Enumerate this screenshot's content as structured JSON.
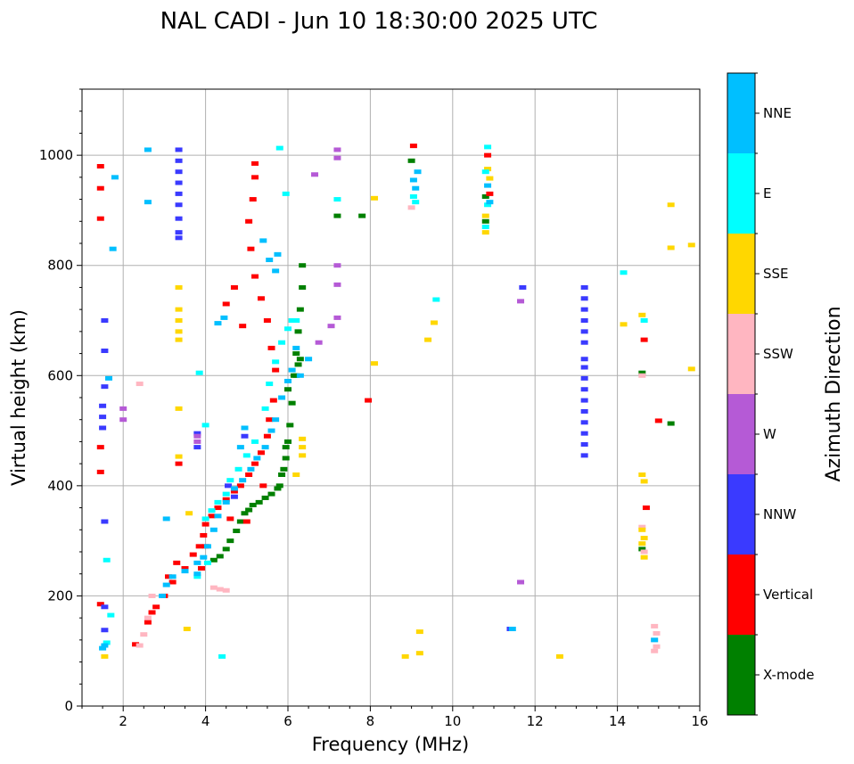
{
  "chart_data": {
    "type": "scatter",
    "title": "NAL CADI - Jun 10 18:30:00 2025 UTC",
    "xlabel": "Frequency (MHz)",
    "ylabel": "Virtual height (km)",
    "xlim": [
      1,
      16
    ],
    "ylim": [
      0,
      1120
    ],
    "x_ticks": [
      2,
      4,
      6,
      8,
      10,
      12,
      14,
      16
    ],
    "x_tick_labels": [
      "2",
      "4",
      "6",
      "8",
      "10",
      "12",
      "14",
      "16"
    ],
    "y_ticks": [
      0,
      200,
      400,
      600,
      800,
      1000
    ],
    "y_tick_labels": [
      "0",
      "200",
      "400",
      "600",
      "800",
      "1000"
    ],
    "grid": true,
    "colorbar": {
      "title": "Azimuth Direction",
      "categories": [
        {
          "name": "X-mode",
          "color": "#008000"
        },
        {
          "name": "Vertical",
          "color": "#ff0000"
        },
        {
          "name": "NNW",
          "color": "#3a3aff"
        },
        {
          "name": "W",
          "color": "#b55ad6"
        },
        {
          "name": "SSW",
          "color": "#ffb6c1"
        },
        {
          "name": "SSE",
          "color": "#ffd700"
        },
        {
          "name": "E",
          "color": "#00ffff"
        },
        {
          "name": "NNE",
          "color": "#00bfff"
        }
      ]
    },
    "series": [
      {
        "name": "X-mode",
        "points": [
          [
            4.2,
            265
          ],
          [
            4.35,
            272
          ],
          [
            4.5,
            285
          ],
          [
            4.6,
            300
          ],
          [
            4.75,
            318
          ],
          [
            4.85,
            335
          ],
          [
            4.95,
            350
          ],
          [
            5.05,
            356
          ],
          [
            5.15,
            365
          ],
          [
            5.3,
            370
          ],
          [
            5.45,
            378
          ],
          [
            5.6,
            385
          ],
          [
            5.75,
            395
          ],
          [
            5.85,
            420
          ],
          [
            5.95,
            450
          ],
          [
            6.0,
            480
          ],
          [
            6.05,
            510
          ],
          [
            6.1,
            550
          ],
          [
            6.15,
            600
          ],
          [
            6.2,
            640
          ],
          [
            6.25,
            680
          ],
          [
            6.3,
            720
          ],
          [
            6.35,
            760
          ],
          [
            6.35,
            800
          ],
          [
            5.9,
            430
          ],
          [
            5.95,
            470
          ],
          [
            6.2,
            600
          ],
          [
            6.25,
            620
          ],
          [
            6.3,
            630
          ],
          [
            6.0,
            575
          ],
          [
            5.8,
            400
          ],
          [
            14.6,
            605
          ],
          [
            14.6,
            285
          ],
          [
            15.3,
            513
          ],
          [
            9.0,
            990
          ],
          [
            10.8,
            925
          ],
          [
            10.8,
            880
          ],
          [
            7.8,
            890
          ],
          [
            7.2,
            890
          ]
        ]
      },
      {
        "name": "Vertical",
        "points": [
          [
            2.3,
            112
          ],
          [
            2.6,
            152
          ],
          [
            2.8,
            180
          ],
          [
            3.0,
            200
          ],
          [
            3.2,
            225
          ],
          [
            3.5,
            250
          ],
          [
            3.7,
            275
          ],
          [
            3.85,
            290
          ],
          [
            3.95,
            310
          ],
          [
            4.0,
            330
          ],
          [
            4.15,
            345
          ],
          [
            4.3,
            360
          ],
          [
            4.5,
            375
          ],
          [
            4.7,
            390
          ],
          [
            4.85,
            400
          ],
          [
            5.05,
            420
          ],
          [
            5.2,
            440
          ],
          [
            5.35,
            460
          ],
          [
            5.5,
            490
          ],
          [
            5.55,
            520
          ],
          [
            5.65,
            555
          ],
          [
            5.7,
            610
          ],
          [
            5.6,
            650
          ],
          [
            5.5,
            700
          ],
          [
            5.35,
            740
          ],
          [
            5.2,
            780
          ],
          [
            5.1,
            830
          ],
          [
            5.05,
            880
          ],
          [
            5.15,
            920
          ],
          [
            5.2,
            960
          ],
          [
            5.2,
            985
          ],
          [
            4.7,
            760
          ],
          [
            4.5,
            730
          ],
          [
            4.9,
            690
          ],
          [
            1.45,
            980
          ],
          [
            1.45,
            940
          ],
          [
            1.45,
            885
          ],
          [
            1.45,
            470
          ],
          [
            1.45,
            425
          ],
          [
            1.45,
            185
          ],
          [
            3.35,
            440
          ],
          [
            7.95,
            555
          ],
          [
            9.05,
            1017
          ],
          [
            10.85,
            1000
          ],
          [
            10.9,
            930
          ],
          [
            14.65,
            665
          ],
          [
            14.7,
            360
          ],
          [
            15.0,
            518
          ],
          [
            4.0,
            290
          ],
          [
            3.9,
            250
          ],
          [
            5.0,
            335
          ],
          [
            4.6,
            340
          ],
          [
            5.4,
            400
          ],
          [
            3.1,
            235
          ],
          [
            3.3,
            260
          ],
          [
            2.7,
            170
          ]
        ]
      },
      {
        "name": "NNW",
        "points": [
          [
            3.35,
            1010
          ],
          [
            3.35,
            990
          ],
          [
            3.35,
            970
          ],
          [
            3.35,
            950
          ],
          [
            3.35,
            930
          ],
          [
            3.35,
            910
          ],
          [
            3.35,
            885
          ],
          [
            3.35,
            860
          ],
          [
            3.35,
            850
          ],
          [
            13.2,
            760
          ],
          [
            13.2,
            740
          ],
          [
            13.2,
            720
          ],
          [
            13.2,
            700
          ],
          [
            13.2,
            680
          ],
          [
            13.2,
            660
          ],
          [
            13.2,
            630
          ],
          [
            13.2,
            615
          ],
          [
            13.2,
            595
          ],
          [
            13.2,
            575
          ],
          [
            13.2,
            555
          ],
          [
            13.2,
            535
          ],
          [
            13.2,
            515
          ],
          [
            13.2,
            495
          ],
          [
            13.2,
            475
          ],
          [
            13.2,
            455
          ],
          [
            1.55,
            700
          ],
          [
            1.55,
            645
          ],
          [
            1.55,
            580
          ],
          [
            1.5,
            545
          ],
          [
            1.5,
            525
          ],
          [
            1.5,
            505
          ],
          [
            1.55,
            180
          ],
          [
            1.55,
            138
          ],
          [
            1.55,
            335
          ],
          [
            4.55,
            400
          ],
          [
            4.7,
            380
          ],
          [
            3.8,
            495
          ],
          [
            3.8,
            470
          ],
          [
            11.7,
            760
          ],
          [
            11.4,
            140
          ],
          [
            4.95,
            490
          ]
        ]
      },
      {
        "name": "W",
        "points": [
          [
            7.2,
            1010
          ],
          [
            7.2,
            995
          ],
          [
            7.2,
            800
          ],
          [
            7.2,
            765
          ],
          [
            7.2,
            705
          ],
          [
            6.65,
            965
          ],
          [
            6.75,
            660
          ],
          [
            7.05,
            690
          ],
          [
            3.8,
            490
          ],
          [
            3.8,
            480
          ],
          [
            2.0,
            540
          ],
          [
            2.0,
            520
          ],
          [
            11.65,
            735
          ],
          [
            11.65,
            225
          ]
        ]
      },
      {
        "name": "SSW",
        "points": [
          [
            4.2,
            215
          ],
          [
            4.35,
            212
          ],
          [
            4.5,
            210
          ],
          [
            2.4,
            110
          ],
          [
            2.5,
            130
          ],
          [
            2.6,
            160
          ],
          [
            2.7,
            200
          ],
          [
            14.9,
            145
          ],
          [
            14.95,
            132
          ],
          [
            14.9,
            120
          ],
          [
            14.95,
            108
          ],
          [
            14.9,
            100
          ],
          [
            14.6,
            600
          ],
          [
            14.6,
            325
          ],
          [
            14.65,
            280
          ],
          [
            9.0,
            905
          ],
          [
            2.4,
            585
          ]
        ]
      },
      {
        "name": "SSE",
        "points": [
          [
            3.35,
            760
          ],
          [
            3.35,
            720
          ],
          [
            3.35,
            700
          ],
          [
            3.35,
            680
          ],
          [
            3.35,
            665
          ],
          [
            3.35,
            540
          ],
          [
            3.35,
            453
          ],
          [
            6.35,
            485
          ],
          [
            6.35,
            470
          ],
          [
            6.35,
            455
          ],
          [
            6.2,
            420
          ],
          [
            8.1,
            922
          ],
          [
            8.1,
            622
          ],
          [
            9.2,
            135
          ],
          [
            9.2,
            96
          ],
          [
            8.85,
            90
          ],
          [
            9.55,
            696
          ],
          [
            9.4,
            665
          ],
          [
            12.6,
            90
          ],
          [
            14.15,
            693
          ],
          [
            14.6,
            710
          ],
          [
            14.6,
            420
          ],
          [
            14.65,
            408
          ],
          [
            14.6,
            320
          ],
          [
            14.65,
            305
          ],
          [
            14.6,
            295
          ],
          [
            14.65,
            270
          ],
          [
            15.3,
            910
          ],
          [
            15.3,
            832
          ],
          [
            15.8,
            837
          ],
          [
            15.8,
            612
          ],
          [
            3.55,
            140
          ],
          [
            3.6,
            350
          ],
          [
            1.55,
            90
          ],
          [
            10.85,
            975
          ],
          [
            10.9,
            958
          ],
          [
            10.8,
            890
          ],
          [
            10.8,
            860
          ]
        ]
      },
      {
        "name": "E",
        "points": [
          [
            4.0,
            340
          ],
          [
            4.15,
            355
          ],
          [
            4.3,
            370
          ],
          [
            4.5,
            385
          ],
          [
            4.6,
            410
          ],
          [
            4.8,
            430
          ],
          [
            5.0,
            455
          ],
          [
            5.2,
            480
          ],
          [
            5.45,
            540
          ],
          [
            5.55,
            585
          ],
          [
            5.7,
            625
          ],
          [
            5.85,
            660
          ],
          [
            6.0,
            685
          ],
          [
            6.1,
            700
          ],
          [
            6.2,
            700
          ],
          [
            9.6,
            738
          ],
          [
            14.15,
            787
          ],
          [
            14.65,
            700
          ],
          [
            9.05,
            925
          ],
          [
            9.1,
            915
          ],
          [
            10.85,
            1015
          ],
          [
            10.8,
            970
          ],
          [
            10.85,
            910
          ],
          [
            10.8,
            870
          ],
          [
            4.0,
            510
          ],
          [
            3.85,
            605
          ],
          [
            4.05,
            260
          ],
          [
            3.8,
            235
          ],
          [
            4.4,
            90
          ],
          [
            1.6,
            265
          ],
          [
            1.6,
            115
          ],
          [
            1.7,
            165
          ],
          [
            7.2,
            920
          ],
          [
            5.95,
            930
          ],
          [
            5.8,
            1013
          ]
        ]
      },
      {
        "name": "NNE",
        "points": [
          [
            2.95,
            200
          ],
          [
            3.05,
            220
          ],
          [
            3.2,
            235
          ],
          [
            3.5,
            245
          ],
          [
            3.8,
            260
          ],
          [
            3.95,
            270
          ],
          [
            4.05,
            290
          ],
          [
            4.2,
            320
          ],
          [
            4.3,
            345
          ],
          [
            4.5,
            370
          ],
          [
            4.7,
            395
          ],
          [
            4.9,
            410
          ],
          [
            5.1,
            430
          ],
          [
            5.25,
            450
          ],
          [
            5.45,
            470
          ],
          [
            5.6,
            500
          ],
          [
            5.7,
            520
          ],
          [
            5.85,
            560
          ],
          [
            6.0,
            590
          ],
          [
            6.1,
            610
          ],
          [
            6.2,
            650
          ],
          [
            6.3,
            600
          ],
          [
            6.5,
            630
          ],
          [
            4.3,
            695
          ],
          [
            4.45,
            705
          ],
          [
            4.85,
            470
          ],
          [
            4.95,
            505
          ],
          [
            5.7,
            790
          ],
          [
            5.75,
            820
          ],
          [
            5.4,
            845
          ],
          [
            5.55,
            810
          ],
          [
            3.05,
            340
          ],
          [
            2.6,
            1010
          ],
          [
            2.6,
            915
          ],
          [
            1.8,
            960
          ],
          [
            1.75,
            830
          ],
          [
            1.65,
            595
          ],
          [
            1.55,
            110
          ],
          [
            1.5,
            105
          ],
          [
            9.15,
            970
          ],
          [
            9.05,
            955
          ],
          [
            9.1,
            940
          ],
          [
            10.85,
            945
          ],
          [
            10.9,
            915
          ],
          [
            14.9,
            120
          ],
          [
            11.45,
            140
          ],
          [
            3.8,
            240
          ]
        ]
      }
    ]
  }
}
